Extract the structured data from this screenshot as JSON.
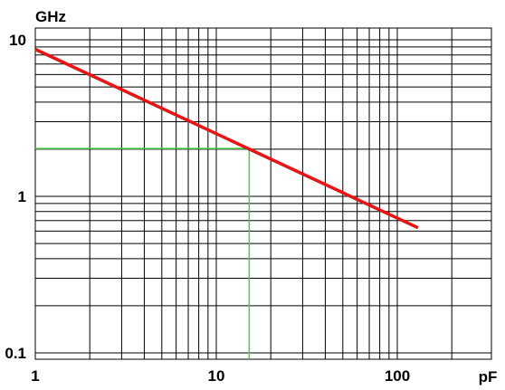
{
  "chart_data": {
    "type": "line",
    "x_scale": "log",
    "y_scale": "log",
    "xlim": [
      1,
      200
    ],
    "ylim": [
      0.1,
      12
    ],
    "x_unit": "pF",
    "y_unit": "GHz",
    "x_ticks": [
      {
        "value": 1,
        "label": "1"
      },
      {
        "value": 10,
        "label": "10"
      },
      {
        "value": 100,
        "label": "100"
      }
    ],
    "y_ticks": [
      {
        "value": 0.1,
        "label": "0.1"
      },
      {
        "value": 1,
        "label": "1"
      },
      {
        "value": 10,
        "label": "10"
      }
    ],
    "grid": true,
    "series": [
      {
        "color": "#ee1111",
        "x": [
          1,
          130
        ],
        "y": [
          8.7,
          0.63
        ]
      }
    ],
    "reference": {
      "color": "#44cc44",
      "x": 15.2,
      "y": 2.02
    }
  }
}
